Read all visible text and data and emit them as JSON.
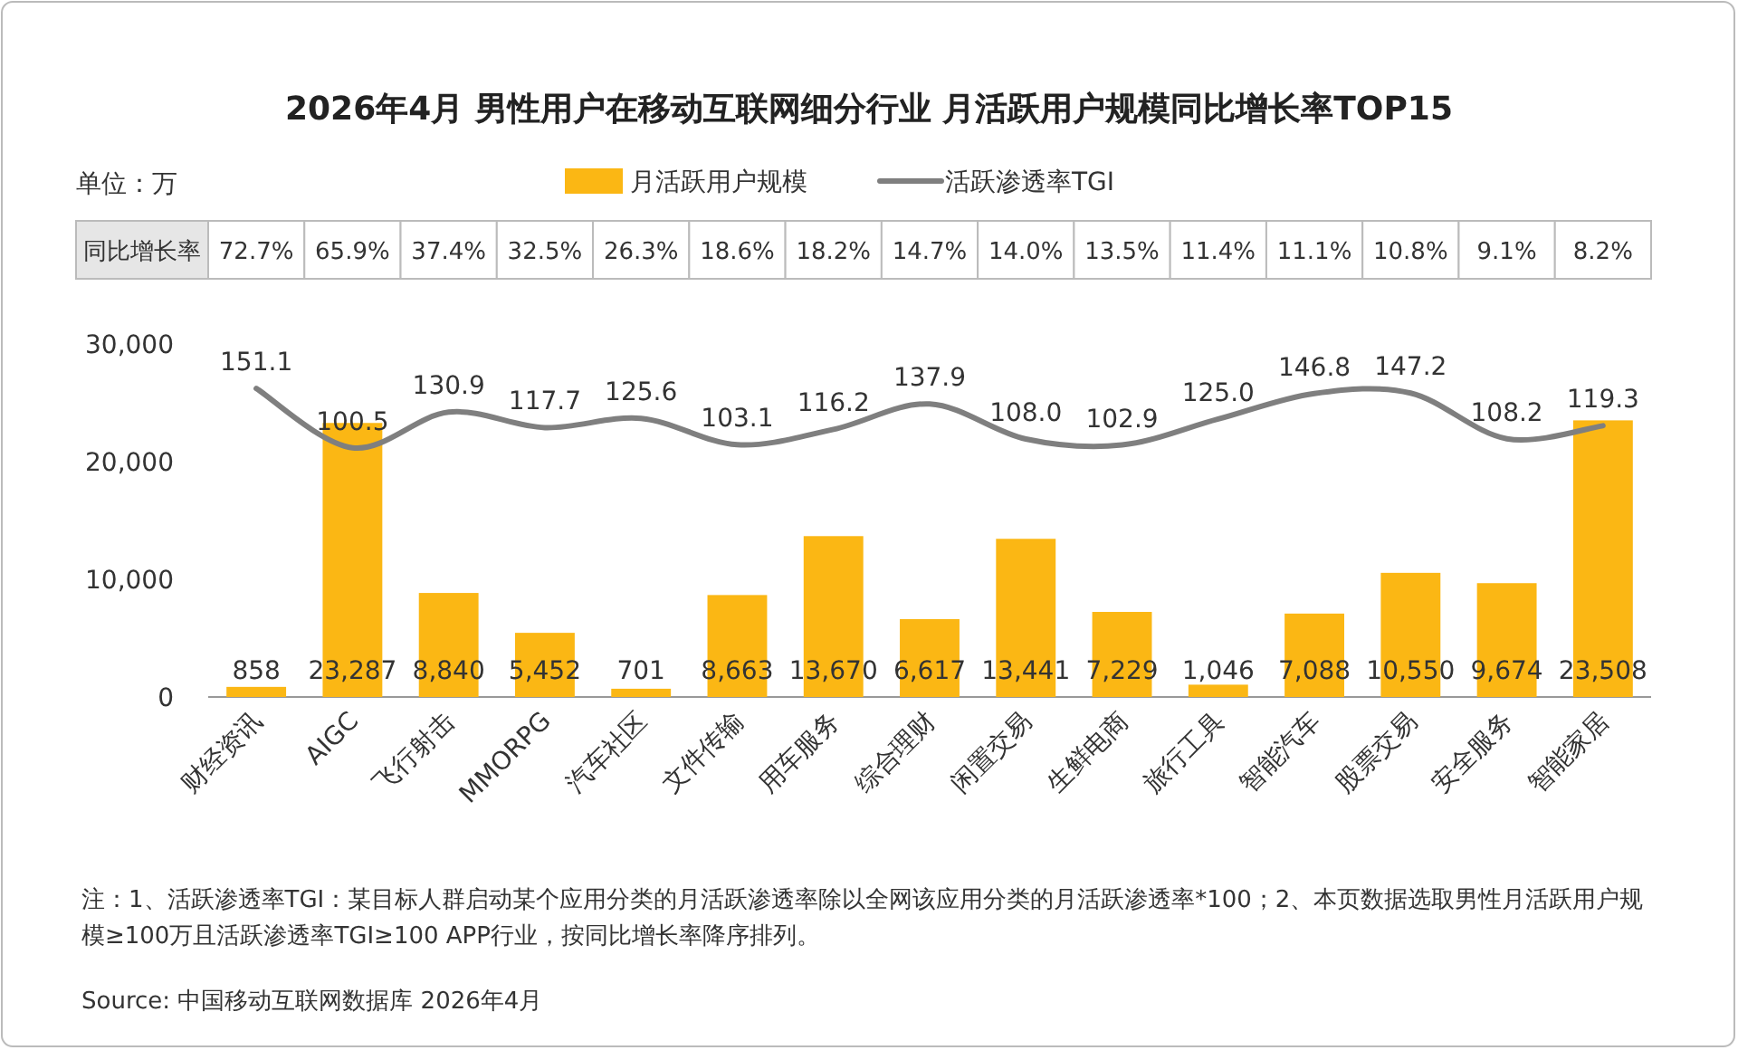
{
  "chart_data": {
    "type": "bar",
    "title": "2026年4月 男性用户在移动互联网细分行业 月活跃用户规模同比增长率TOP15",
    "subtitle": "单位：万",
    "categories": [
      "财经资讯",
      "AIGC",
      "飞行射击",
      "MMORPG",
      "汽车社区",
      "文件传输",
      "用车服务",
      "综合理财",
      "闲置交易",
      "生鲜电商",
      "旅行工具",
      "智能汽车",
      "股票交易",
      "安全服务",
      "智能家居"
    ],
    "series": [
      {
        "name": "月活跃用户规模",
        "color": "#fbb714",
        "values": [
          858,
          23287,
          8840,
          5452,
          701,
          8663,
          13670,
          6617,
          13441,
          7229,
          1046,
          7088,
          10550,
          9674,
          23508
        ],
        "value_labels": [
          "858",
          "23,287",
          "8,840",
          "5,452",
          "701",
          "8,663",
          "13,670",
          "6,617",
          "13,441",
          "7,229",
          "1,046",
          "7,088",
          "10,550",
          "9,674",
          "23,508"
        ]
      },
      {
        "name": "活跃渗透率TGI",
        "type": "line",
        "axis": "y2",
        "color": "#7f7f7f",
        "values": [
          151.1,
          100.5,
          130.9,
          117.7,
          125.6,
          103.1,
          116.2,
          137.9,
          108.0,
          102.9,
          125.0,
          146.8,
          147.2,
          108.2,
          119.3
        ],
        "value_labels": [
          "151.1",
          "100.5",
          "130.9",
          "117.7",
          "125.6",
          "103.1",
          "116.2",
          "137.9",
          "108.0",
          "102.9",
          "125.0",
          "146.8",
          "147.2",
          "108.2",
          "119.3"
        ]
      }
    ],
    "ylim": [
      0,
      30000
    ],
    "yticks": [
      0,
      {
        "value": 10000,
        "label": "10,000"
      },
      {
        "value": 20000,
        "label": "20,000"
      },
      {
        "value": 30000,
        "label": "30,000"
      }
    ],
    "legend": "top",
    "annotations": [
      "同比增长率",
      "72.7%",
      "65.9%",
      "37.4%",
      "32.5%",
      "26.3%",
      "18.6%",
      "18.2%",
      "14.7%",
      "14.0%",
      "13.5%",
      "11.4%",
      "11.1%",
      "10.8%",
      "9.1%",
      "8.2%",
      "注：1、活跃渗透率TGI：某目标人群启动某个应用分类的月活跃渗透率除以全网该应用分类的月活跃渗透率*100；2、本页数据选取男性月活跃用户规模≥100万且活跃渗透率TGI≥100 APP行业，按同比增长率降序排列。",
      "Source: 中国移动互联网数据库 2026年4月"
    ]
  }
}
